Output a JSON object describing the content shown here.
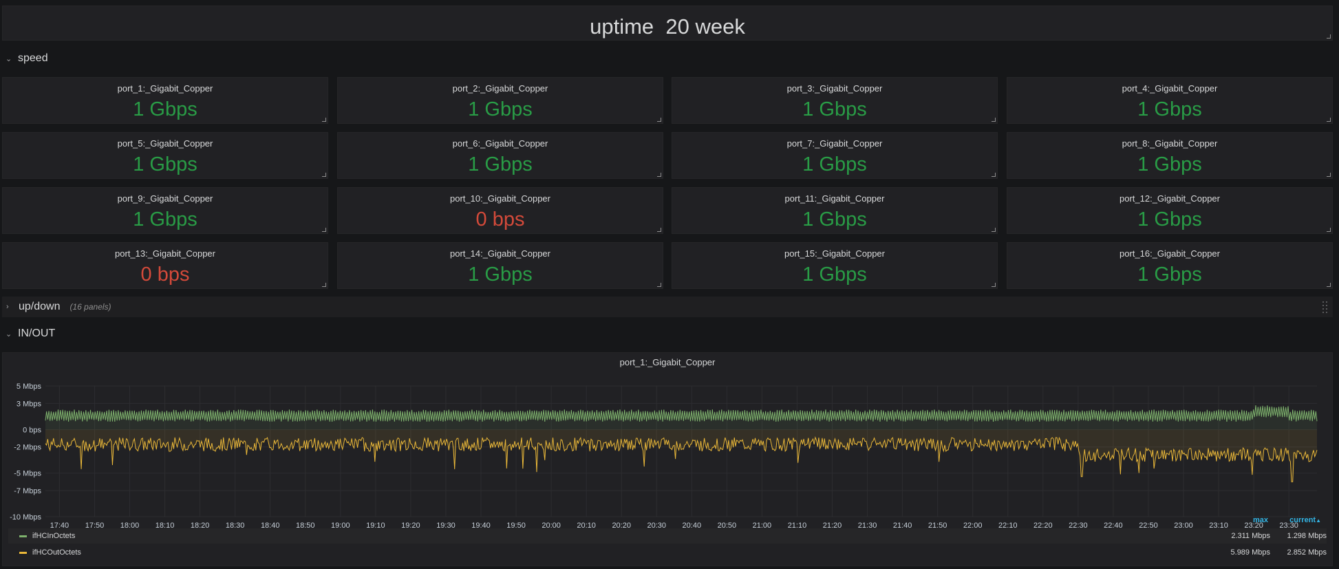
{
  "uptime": {
    "label": "uptime",
    "value": "20 week"
  },
  "rows": {
    "speed": "speed",
    "updown": "up/down",
    "updown_count": "(16 panels)",
    "inout": "IN/OUT"
  },
  "ports": [
    {
      "name": "port_1:_Gigabit_Copper",
      "speed": "1 Gbps",
      "status": "ok"
    },
    {
      "name": "port_2:_Gigabit_Copper",
      "speed": "1 Gbps",
      "status": "ok"
    },
    {
      "name": "port_3:_Gigabit_Copper",
      "speed": "1 Gbps",
      "status": "ok"
    },
    {
      "name": "port_4:_Gigabit_Copper",
      "speed": "1 Gbps",
      "status": "ok"
    },
    {
      "name": "port_5:_Gigabit_Copper",
      "speed": "1 Gbps",
      "status": "ok"
    },
    {
      "name": "port_6:_Gigabit_Copper",
      "speed": "1 Gbps",
      "status": "ok"
    },
    {
      "name": "port_7:_Gigabit_Copper",
      "speed": "1 Gbps",
      "status": "ok"
    },
    {
      "name": "port_8:_Gigabit_Copper",
      "speed": "1 Gbps",
      "status": "ok"
    },
    {
      "name": "port_9:_Gigabit_Copper",
      "speed": "1 Gbps",
      "status": "ok"
    },
    {
      "name": "port_10:_Gigabit_Copper",
      "speed": "0 bps",
      "status": "down"
    },
    {
      "name": "port_11:_Gigabit_Copper",
      "speed": "1 Gbps",
      "status": "ok"
    },
    {
      "name": "port_12:_Gigabit_Copper",
      "speed": "1 Gbps",
      "status": "ok"
    },
    {
      "name": "port_13:_Gigabit_Copper",
      "speed": "0 bps",
      "status": "down"
    },
    {
      "name": "port_14:_Gigabit_Copper",
      "speed": "1 Gbps",
      "status": "ok"
    },
    {
      "name": "port_15:_Gigabit_Copper",
      "speed": "1 Gbps",
      "status": "ok"
    },
    {
      "name": "port_16:_Gigabit_Copper",
      "speed": "1 Gbps",
      "status": "ok"
    }
  ],
  "colors": {
    "ok": "#299c46",
    "down": "#d44a3a",
    "in_series": "#7eb26d",
    "out_series": "#eab839",
    "legend_header": "#33b5e5"
  },
  "graph": {
    "title": "port_1:_Gigabit_Copper",
    "legend_headers": {
      "max": "max",
      "current": "current"
    },
    "legend": [
      {
        "name": "ifHCInOctets",
        "max": "2.311 Mbps",
        "current": "1.298 Mbps",
        "color": "#7eb26d"
      },
      {
        "name": "ifHCOutOctets",
        "max": "5.989 Mbps",
        "current": "2.852 Mbps",
        "color": "#eab839"
      }
    ]
  },
  "chart_data": {
    "type": "line",
    "title": "port_1:_Gigabit_Copper",
    "x_range": [
      "17:36",
      "23:38"
    ],
    "x_ticks": [
      "17:40",
      "17:50",
      "18:00",
      "18:10",
      "18:20",
      "18:30",
      "18:40",
      "18:50",
      "19:00",
      "19:10",
      "19:20",
      "19:30",
      "19:40",
      "19:50",
      "20:00",
      "20:10",
      "20:20",
      "20:30",
      "20:40",
      "20:50",
      "21:00",
      "21:10",
      "21:20",
      "21:30",
      "21:40",
      "21:50",
      "22:00",
      "22:10",
      "22:20",
      "22:30",
      "22:40",
      "22:50",
      "23:00",
      "23:10",
      "23:20",
      "23:30"
    ],
    "y_ticks": [
      "5 Mbps",
      "3 Mbps",
      "0 bps",
      "-2 Mbps",
      "-5 Mbps",
      "-7 Mbps",
      "-10 Mbps"
    ],
    "ylim": [
      -10,
      5
    ],
    "y_unit": "Mbps",
    "grid": true,
    "series": [
      {
        "name": "ifHCInOctets",
        "color": "#7eb26d",
        "base": 1.6,
        "amplitude": 0.7,
        "note_values": {
          "max": 2.311,
          "current": 1.298
        }
      },
      {
        "name": "ifHCOutOctets",
        "color": "#eab839",
        "base_until_2230": -1.7,
        "base_after_2230": -2.9,
        "min": -5.989,
        "current": -2.852
      }
    ]
  }
}
